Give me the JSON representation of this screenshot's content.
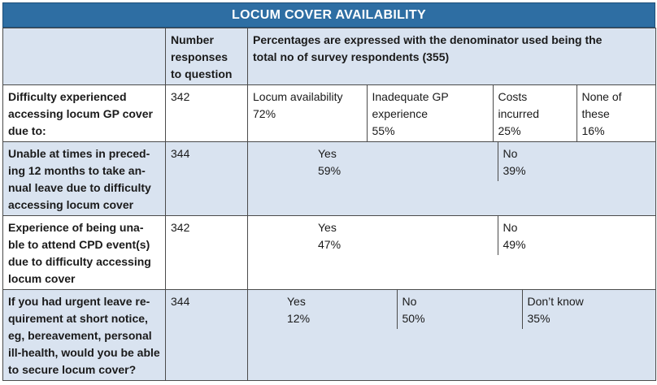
{
  "title": "LOCUM COVER AVAILABILITY",
  "header": {
    "responses": [
      "Number",
      "responses",
      "to question"
    ],
    "note": [
      "Percentages are expressed with the denominator used being the",
      "total no of survey respondents (355)"
    ]
  },
  "rows": [
    {
      "question": [
        "Difficulty experienced",
        "accessing locum GP cover",
        "due to:"
      ],
      "responses": "342",
      "answers": [
        {
          "lines": [
            "Locum availability",
            "72%"
          ]
        },
        {
          "lines": [
            "Inadequate GP",
            "experience",
            "55%"
          ]
        },
        {
          "lines": [
            "Costs",
            "incurred",
            "25%"
          ]
        },
        {
          "lines": [
            "None of",
            "these",
            "16%"
          ]
        }
      ]
    },
    {
      "question": [
        "Unable at times in preced-",
        "ing 12 months to take an-",
        "nual leave due to difficulty",
        "accessing locum cover"
      ],
      "responses": "344",
      "answers": [
        {
          "lines": [
            "Yes",
            "59%"
          ]
        },
        {
          "lines": [
            "No",
            "39%"
          ]
        }
      ]
    },
    {
      "question": [
        "Experience of being una-",
        "ble to attend CPD event(s)",
        "due to difficulty accessing",
        "locum cover"
      ],
      "responses": "342",
      "answers": [
        {
          "lines": [
            "Yes",
            "47%"
          ]
        },
        {
          "lines": [
            "No",
            "49%"
          ]
        }
      ]
    },
    {
      "question": [
        "If you had urgent leave re-",
        "quirement at short notice,",
        "eg, bereavement, personal",
        "ill-health, would you be able",
        "to secure locum cover?"
      ],
      "responses": "344",
      "answers": [
        {
          "lines": [
            "Yes",
            "12%"
          ]
        },
        {
          "lines": [
            "No",
            "50%"
          ]
        },
        {
          "lines": [
            "Don’t know",
            "35%"
          ]
        }
      ]
    }
  ]
}
